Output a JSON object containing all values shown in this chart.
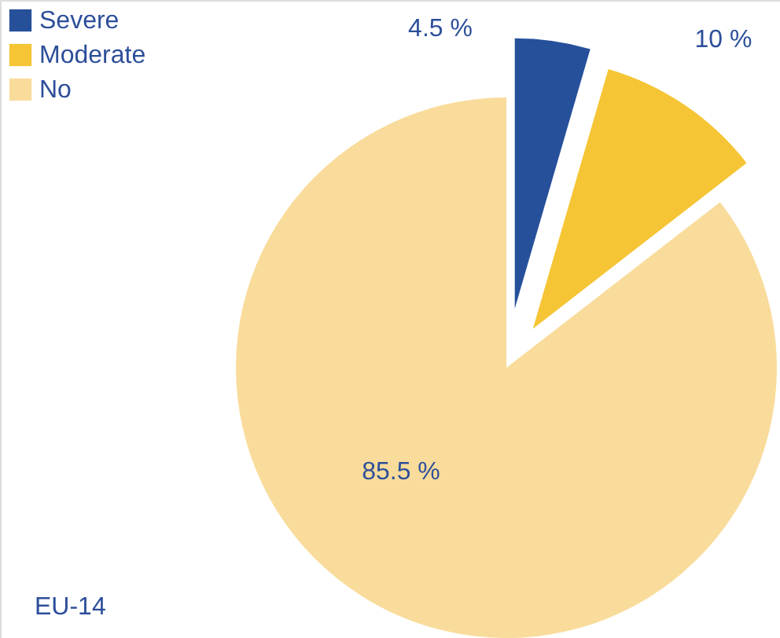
{
  "chart_data": {
    "type": "pie",
    "categories": [
      "Severe",
      "Moderate",
      "No"
    ],
    "values": [
      4.5,
      10,
      85.5
    ],
    "colors": [
      "#27509b",
      "#f5c535",
      "#f9dc9b"
    ],
    "value_labels": [
      "4.5 %",
      "10 %",
      "85.5 %"
    ],
    "legend": "top left",
    "annotations": [
      "EU-14"
    ]
  }
}
